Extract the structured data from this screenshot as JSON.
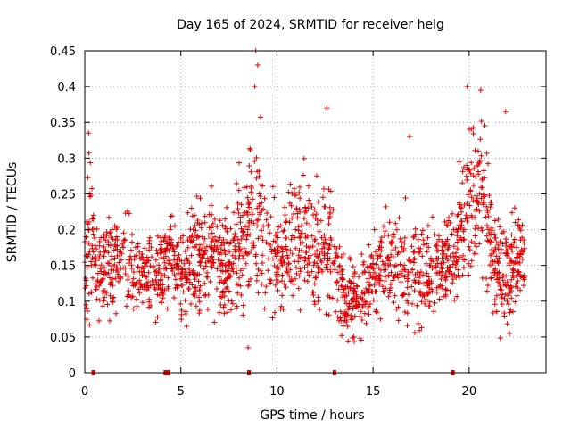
{
  "chart_data": {
    "type": "scatter",
    "title": "Day 165 of 2024, SRMTID for receiver helg",
    "xlabel": "GPS time / hours",
    "ylabel": "SRMTID / TECUs",
    "xlim": [
      0,
      24
    ],
    "ylim": [
      0,
      0.45
    ],
    "x_ticks": [
      0,
      5,
      10,
      15,
      20
    ],
    "x_tick_labels": [
      "0",
      "5",
      "10",
      "15",
      "20"
    ],
    "y_ticks": [
      0,
      0.05,
      0.1,
      0.15,
      0.2,
      0.25,
      0.3,
      0.35,
      0.4,
      0.45
    ],
    "y_tick_labels": [
      "0",
      "0.05",
      "0.1",
      "0.15",
      "0.2",
      "0.25",
      "0.3",
      "0.35",
      "0.4",
      "0.45"
    ],
    "grid": true,
    "marker": "plus",
    "color": "#e00000",
    "gap_markers": [
      {
        "x_start": 0.35,
        "x_end": 0.55
      },
      {
        "x_start": 4.1,
        "x_end": 4.45
      },
      {
        "x_start": 8.45,
        "x_end": 8.6
      },
      {
        "x_start": 12.9,
        "x_end": 13.05
      },
      {
        "x_start": 19.05,
        "x_end": 19.25
      }
    ],
    "density_profile": [
      {
        "x": 0.0,
        "center": 0.16,
        "spread": 0.06
      },
      {
        "x": 0.3,
        "center": 0.2,
        "spread": 0.08
      },
      {
        "x": 0.6,
        "center": 0.13,
        "spread": 0.04
      },
      {
        "x": 1.2,
        "center": 0.15,
        "spread": 0.05
      },
      {
        "x": 2.0,
        "center": 0.16,
        "spread": 0.05
      },
      {
        "x": 3.0,
        "center": 0.14,
        "spread": 0.04
      },
      {
        "x": 3.8,
        "center": 0.12,
        "spread": 0.04
      },
      {
        "x": 4.4,
        "center": 0.17,
        "spread": 0.04
      },
      {
        "x": 5.0,
        "center": 0.13,
        "spread": 0.04
      },
      {
        "x": 5.8,
        "center": 0.17,
        "spread": 0.05
      },
      {
        "x": 6.5,
        "center": 0.16,
        "spread": 0.05
      },
      {
        "x": 7.5,
        "center": 0.15,
        "spread": 0.05
      },
      {
        "x": 8.3,
        "center": 0.19,
        "spread": 0.07
      },
      {
        "x": 8.9,
        "center": 0.24,
        "spread": 0.1
      },
      {
        "x": 9.5,
        "center": 0.17,
        "spread": 0.06
      },
      {
        "x": 10.3,
        "center": 0.15,
        "spread": 0.05
      },
      {
        "x": 11.0,
        "center": 0.19,
        "spread": 0.06
      },
      {
        "x": 12.0,
        "center": 0.17,
        "spread": 0.06
      },
      {
        "x": 12.7,
        "center": 0.18,
        "spread": 0.07
      },
      {
        "x": 13.5,
        "center": 0.1,
        "spread": 0.04
      },
      {
        "x": 14.5,
        "center": 0.11,
        "spread": 0.04
      },
      {
        "x": 15.5,
        "center": 0.15,
        "spread": 0.04
      },
      {
        "x": 16.5,
        "center": 0.15,
        "spread": 0.05
      },
      {
        "x": 17.5,
        "center": 0.14,
        "spread": 0.05
      },
      {
        "x": 18.5,
        "center": 0.15,
        "spread": 0.04
      },
      {
        "x": 19.3,
        "center": 0.18,
        "spread": 0.05
      },
      {
        "x": 20.0,
        "center": 0.24,
        "spread": 0.08
      },
      {
        "x": 20.7,
        "center": 0.27,
        "spread": 0.08
      },
      {
        "x": 21.3,
        "center": 0.15,
        "spread": 0.05
      },
      {
        "x": 22.0,
        "center": 0.14,
        "spread": 0.06
      },
      {
        "x": 22.8,
        "center": 0.16,
        "spread": 0.04
      }
    ],
    "peaks": [
      {
        "x": 0.2,
        "y": 0.335
      },
      {
        "x": 8.9,
        "y": 0.45
      },
      {
        "x": 9.0,
        "y": 0.43
      },
      {
        "x": 8.85,
        "y": 0.4
      },
      {
        "x": 12.6,
        "y": 0.37
      },
      {
        "x": 16.9,
        "y": 0.33
      },
      {
        "x": 19.9,
        "y": 0.4
      },
      {
        "x": 20.6,
        "y": 0.395
      },
      {
        "x": 21.9,
        "y": 0.365
      },
      {
        "x": 8.5,
        "y": 0.035
      },
      {
        "x": 14.0,
        "y": 0.05
      },
      {
        "x": 22.1,
        "y": 0.055
      }
    ]
  }
}
